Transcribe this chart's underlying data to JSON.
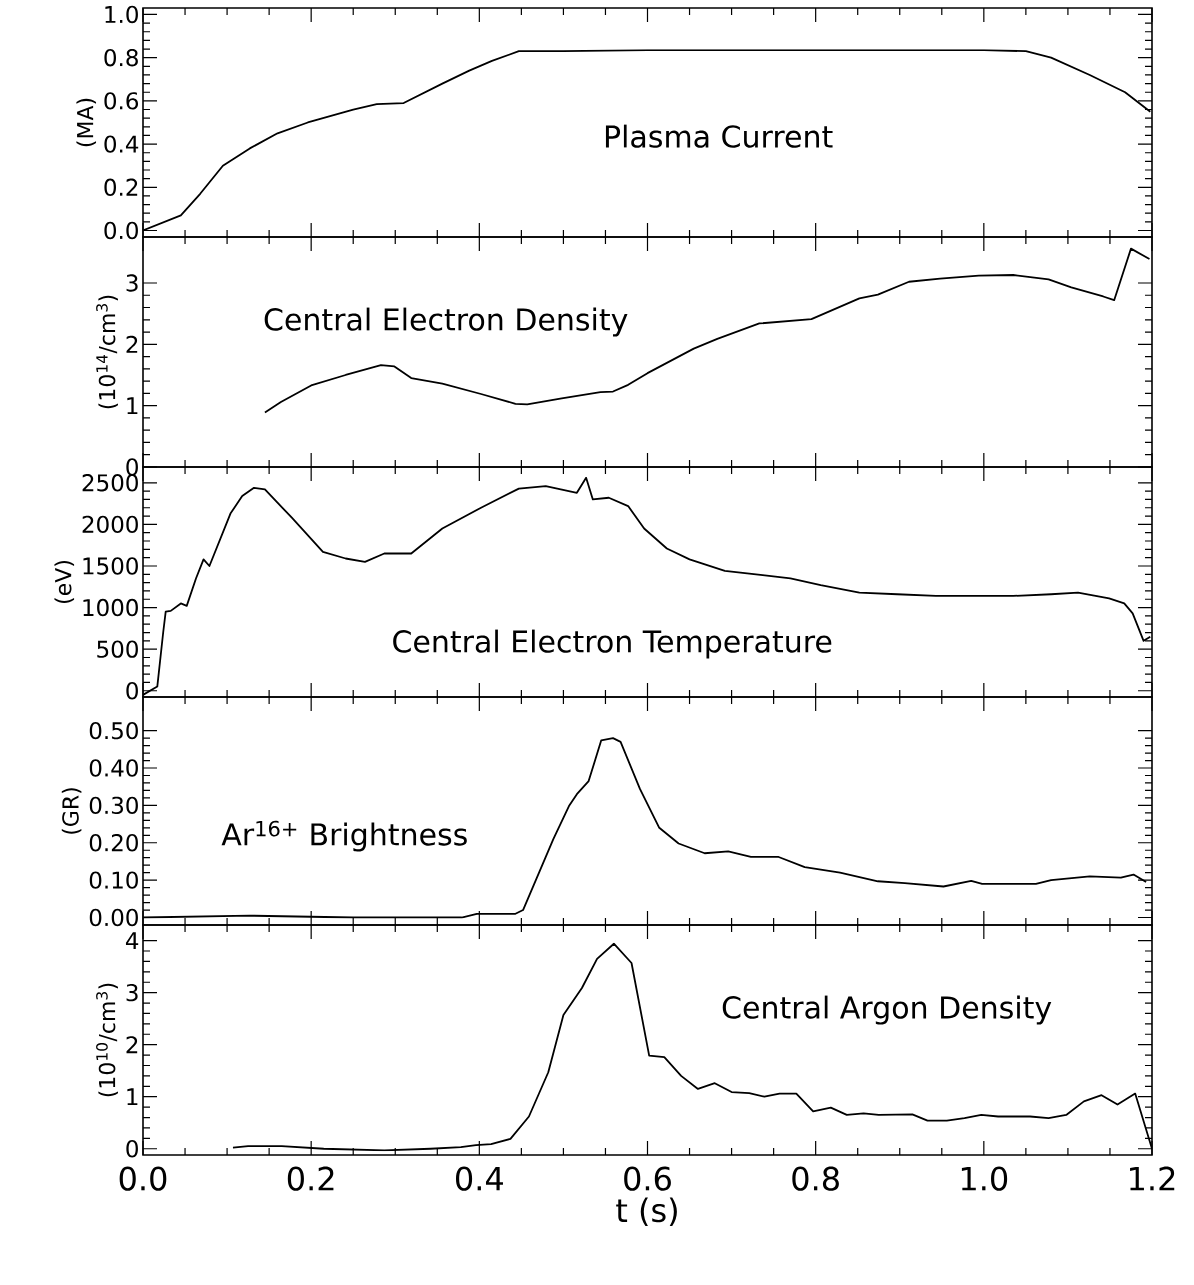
{
  "chart_data": [
    {
      "type": "line",
      "color": "#000000",
      "ylabel": "(MA)",
      "annotations": [
        "Plasma Current"
      ],
      "tick_labels": "y",
      "xlim": [
        0,
        1.2
      ],
      "ylim": [
        -0.03,
        1.03
      ],
      "yticks": [
        {
          "value": 0,
          "label": "0.0"
        },
        0.2,
        0.4,
        0.6,
        0.8,
        {
          "value": 1.0,
          "label": "1.0"
        }
      ],
      "x": [
        0,
        0.045,
        0.068,
        0.095,
        0.127,
        0.16,
        0.196,
        0.25,
        0.278,
        0.31,
        0.356,
        0.388,
        0.415,
        0.447,
        0.5,
        0.6,
        0.7,
        0.8,
        0.9,
        1.0,
        1.05,
        1.08,
        1.126,
        1.168,
        1.198
      ],
      "values": [
        0,
        0.07,
        0.17,
        0.3,
        0.38,
        0.45,
        0.5,
        0.56,
        0.585,
        0.59,
        0.68,
        0.74,
        0.785,
        0.83,
        0.83,
        0.835,
        0.835,
        0.835,
        0.835,
        0.835,
        0.83,
        0.8,
        0.72,
        0.64,
        0.55
      ]
    },
    {
      "type": "line",
      "color": "#000000",
      "ylabel": "(10$^{14}$/cm$^{3}$)",
      "annotations": [
        "Central Electron Density"
      ],
      "tick_labels": "y",
      "xlim": [
        0,
        1.2
      ],
      "ylim": [
        0,
        3.75
      ],
      "yticks": [
        0,
        1,
        2,
        3
      ],
      "x": [
        0.145,
        0.164,
        0.2,
        0.241,
        0.283,
        0.299,
        0.319,
        0.356,
        0.402,
        0.443,
        0.457,
        0.498,
        0.544,
        0.559,
        0.577,
        0.6,
        0.655,
        0.683,
        0.733,
        0.795,
        0.852,
        0.874,
        0.911,
        0.948,
        0.994,
        1.035,
        1.077,
        1.104,
        1.142,
        1.155,
        1.175,
        1.197
      ],
      "values": [
        0.89,
        1.06,
        1.33,
        1.5,
        1.66,
        1.64,
        1.45,
        1.36,
        1.19,
        1.03,
        1.02,
        1.12,
        1.22,
        1.23,
        1.34,
        1.53,
        1.93,
        2.09,
        2.34,
        2.41,
        2.75,
        2.81,
        3.02,
        3.07,
        3.12,
        3.13,
        3.06,
        2.93,
        2.78,
        2.72,
        3.56,
        3.39
      ]
    },
    {
      "type": "line",
      "color": "#000000",
      "ylabel": "(eV)",
      "annotations": [
        "Central Electron Temperature"
      ],
      "tick_labels": "y",
      "xlim": [
        0,
        1.2
      ],
      "ylim": [
        -75,
        2690
      ],
      "yticks": [
        0,
        500,
        1000,
        1500,
        2000,
        2500
      ],
      "x": [
        0,
        0.017,
        0.024,
        0.027,
        0.033,
        0.045,
        0.052,
        0.063,
        0.072,
        0.079,
        0.104,
        0.118,
        0.132,
        0.145,
        0.177,
        0.214,
        0.241,
        0.264,
        0.287,
        0.319,
        0.356,
        0.402,
        0.447,
        0.479,
        0.516,
        0.527,
        0.535,
        0.554,
        0.577,
        0.596,
        0.623,
        0.65,
        0.692,
        0.737,
        0.77,
        0.806,
        0.852,
        0.897,
        0.943,
        0.989,
        1.035,
        1.08,
        1.112,
        1.149,
        1.167,
        1.177,
        1.19,
        1.198
      ],
      "values": [
        -50,
        50,
        700,
        950,
        960,
        1050,
        1020,
        1350,
        1580,
        1500,
        2130,
        2340,
        2440,
        2420,
        2080,
        1670,
        1590,
        1550,
        1650,
        1650,
        1950,
        2200,
        2430,
        2460,
        2380,
        2560,
        2300,
        2320,
        2220,
        1950,
        1710,
        1580,
        1440,
        1390,
        1350,
        1270,
        1180,
        1160,
        1140,
        1140,
        1140,
        1160,
        1180,
        1110,
        1050,
        930,
        600,
        650
      ]
    },
    {
      "type": "line",
      "color": "#000000",
      "ylabel": "(GR)",
      "annotations": [
        "Ar$^{16+}$ Brightness"
      ],
      "tick_labels": "y",
      "xlim": [
        0,
        1.2
      ],
      "ylim": [
        -0.02,
        0.59
      ],
      "yticks": [
        {
          "value": 0,
          "label": "0.00"
        },
        {
          "value": 0.1,
          "label": "0.10"
        },
        {
          "value": 0.2,
          "label": "0.20"
        },
        {
          "value": 0.3,
          "label": "0.30"
        },
        {
          "value": 0.4,
          "label": "0.40"
        },
        {
          "value": 0.5,
          "label": "0.50"
        }
      ],
      "x": [
        0,
        0.127,
        0.25,
        0.379,
        0.397,
        0.443,
        0.452,
        0.47,
        0.488,
        0.507,
        0.516,
        0.53,
        0.545,
        0.559,
        0.568,
        0.591,
        0.614,
        0.637,
        0.668,
        0.696,
        0.723,
        0.756,
        0.787,
        0.829,
        0.874,
        0.906,
        0.952,
        0.985,
        0.998,
        1.062,
        1.08,
        1.126,
        1.163,
        1.178,
        1.193
      ],
      "values": [
        0,
        0.005,
        0,
        0,
        0.01,
        0.01,
        0.02,
        0.115,
        0.21,
        0.3,
        0.33,
        0.365,
        0.474,
        0.48,
        0.47,
        0.344,
        0.24,
        0.198,
        0.172,
        0.177,
        0.162,
        0.162,
        0.135,
        0.12,
        0.097,
        0.092,
        0.083,
        0.098,
        0.09,
        0.09,
        0.1,
        0.11,
        0.107,
        0.115,
        0.095
      ]
    },
    {
      "type": "line",
      "color": "#000000",
      "ylabel": "(10$^{10}$/cm$^{3}$)",
      "annotations": [
        "Central Argon Density"
      ],
      "xlabel": "t (s)",
      "xlim": [
        0,
        1.2
      ],
      "xticks": [
        {
          "value": 0,
          "label": "0.0"
        },
        0.2,
        0.4,
        0.6,
        0.8,
        {
          "value": 1.0,
          "label": "1.0"
        },
        1.2
      ],
      "ylim": [
        -0.12,
        4.3
      ],
      "yticks": [
        0,
        1,
        2,
        3,
        4
      ],
      "x": [
        0.107,
        0.125,
        0.165,
        0.215,
        0.287,
        0.342,
        0.378,
        0.396,
        0.414,
        0.437,
        0.459,
        0.482,
        0.5,
        0.522,
        0.54,
        0.56,
        0.581,
        0.602,
        0.62,
        0.64,
        0.66,
        0.68,
        0.7,
        0.721,
        0.739,
        0.757,
        0.777,
        0.797,
        0.818,
        0.837,
        0.857,
        0.875,
        0.915,
        0.933,
        0.956,
        0.977,
        0.997,
        1.017,
        1.055,
        1.077,
        1.098,
        1.119,
        1.14,
        1.159,
        1.18,
        1.2
      ],
      "values": [
        0.02,
        0.05,
        0.05,
        0,
        -0.03,
        0,
        0.03,
        0.07,
        0.09,
        0.19,
        0.62,
        1.47,
        2.57,
        3.09,
        3.65,
        3.94,
        3.57,
        1.79,
        1.76,
        1.4,
        1.15,
        1.26,
        1.09,
        1.07,
        1.0,
        1.06,
        1.06,
        0.72,
        0.79,
        0.65,
        0.68,
        0.65,
        0.66,
        0.54,
        0.54,
        0.59,
        0.65,
        0.62,
        0.62,
        0.59,
        0.65,
        0.91,
        1.03,
        0.85,
        1.06,
        0
      ]
    }
  ]
}
